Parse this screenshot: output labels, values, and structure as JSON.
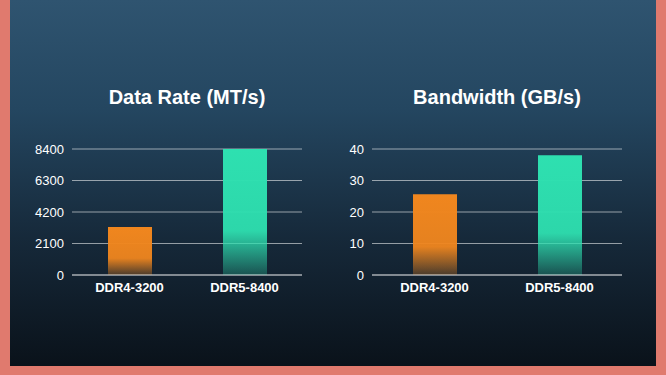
{
  "chart_data": [
    {
      "type": "bar",
      "title": "Data Rate (MT/s)",
      "categories": [
        "DDR4-3200",
        "DDR5-8400"
      ],
      "values": [
        3200,
        8400
      ],
      "colors": [
        "#f0861e",
        "#2ee0b0"
      ],
      "ylim": [
        0,
        8400
      ],
      "yticks": [
        0,
        2100,
        4200,
        6300,
        8400
      ],
      "grid": true
    },
    {
      "type": "bar",
      "title": "Bandwidth (GB/s)",
      "categories": [
        "DDR4-3200",
        "DDR5-8400"
      ],
      "values": [
        25.6,
        38
      ],
      "colors": [
        "#f0861e",
        "#2ee0b0"
      ],
      "ylim": [
        0,
        40
      ],
      "yticks": [
        0,
        10,
        20,
        30,
        40
      ],
      "grid": true
    }
  ]
}
